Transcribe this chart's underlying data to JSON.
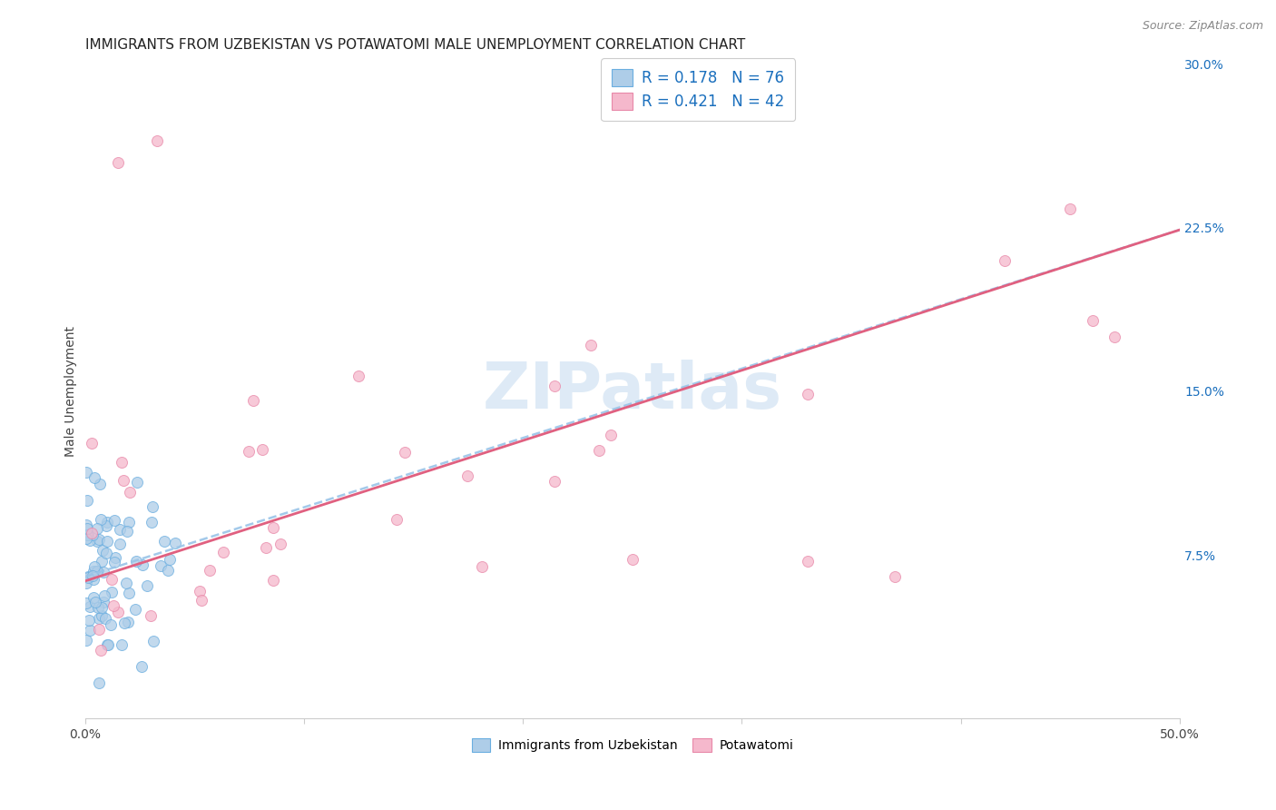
{
  "title": "IMMIGRANTS FROM UZBEKISTAN VS POTAWATOMI MALE UNEMPLOYMENT CORRELATION CHART",
  "source": "Source: ZipAtlas.com",
  "ylabel": "Male Unemployment",
  "watermark": "ZIPatlas",
  "xlim": [
    0.0,
    0.5
  ],
  "ylim": [
    0.0,
    0.3
  ],
  "xtick_vals": [
    0.0,
    0.1,
    0.2,
    0.3,
    0.4,
    0.5
  ],
  "xticklabels": [
    "0.0%",
    "",
    "",
    "",
    "",
    "50.0%"
  ],
  "yticks_right": [
    0.0,
    0.075,
    0.15,
    0.225,
    0.3
  ],
  "yticklabels_right": [
    "",
    "7.5%",
    "15.0%",
    "22.5%",
    "30.0%"
  ],
  "series1_label": "Immigrants from Uzbekistan",
  "series1_fill_color": "#aecde8",
  "series1_edge_color": "#6aaee0",
  "series1_R": "0.178",
  "series1_N": "76",
  "series2_label": "Potawatomi",
  "series2_fill_color": "#f5b8cc",
  "series2_edge_color": "#e888a8",
  "series2_R": "0.421",
  "series2_N": "42",
  "legend_text_color": "#1a6fbd",
  "trend1_color": "#99c4e8",
  "trend2_color": "#e06080",
  "background_color": "#ffffff",
  "grid_color": "#cccccc",
  "title_fontsize": 11,
  "axis_label_fontsize": 10,
  "tick_fontsize": 10,
  "watermark_color": "#c8ddf0",
  "watermark_fontsize": 52,
  "trend1_intercept": 0.065,
  "trend1_slope": 0.318,
  "trend2_intercept": 0.063,
  "trend2_slope": 0.322
}
